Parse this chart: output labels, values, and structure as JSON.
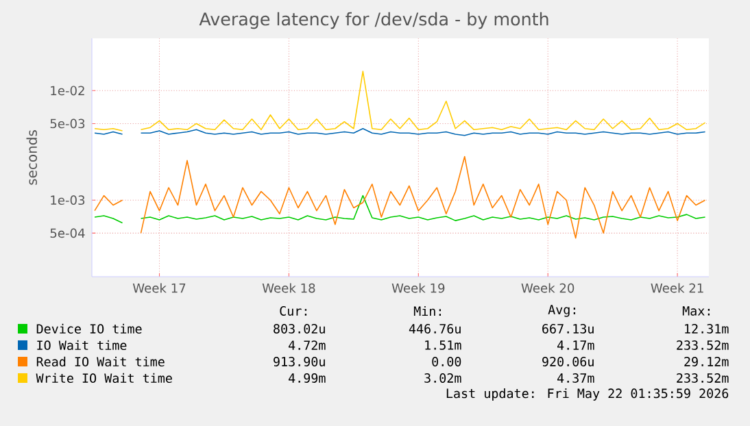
{
  "chart_data": {
    "type": "line",
    "title": "Average latency for /dev/sda - by month",
    "ylabel": "seconds",
    "log": "y",
    "grid": true,
    "legend": "bottom",
    "marker": "none",
    "line_style": "solid",
    "categories": [
      null,
      null,
      null,
      null,
      null,
      null,
      null,
      "Week 17",
      null,
      null,
      null,
      null,
      null,
      null,
      null,
      null,
      null,
      null,
      null,
      null,
      null,
      "Week 18",
      null,
      null,
      null,
      null,
      null,
      null,
      null,
      null,
      null,
      null,
      null,
      null,
      null,
      "Week 19",
      null,
      null,
      null,
      null,
      null,
      null,
      null,
      null,
      null,
      null,
      null,
      null,
      null,
      "Week 20",
      null,
      null,
      null,
      null,
      null,
      null,
      null,
      null,
      null,
      null,
      null,
      null,
      null,
      "Week 21",
      null,
      null,
      null
    ],
    "ylim": [
      0.0002,
      0.03
    ],
    "yticks": [
      {
        "value": 0.0005,
        "label": "5e-04"
      },
      {
        "value": 0.001,
        "label": "1e-03"
      },
      {
        "value": 0.005,
        "label": "5e-03"
      },
      {
        "value": 0.01,
        "label": "1e-02"
      }
    ],
    "series": [
      {
        "name": "Device IO time",
        "color": "#00cc00",
        "values": [
          0.0007,
          0.00072,
          0.00068,
          0.00062,
          null,
          0.00068,
          0.0007,
          0.00066,
          0.00072,
          0.00068,
          0.0007,
          0.00067,
          0.00069,
          0.00072,
          0.00066,
          0.0007,
          0.00068,
          0.00071,
          0.00066,
          0.00069,
          0.00068,
          0.0007,
          0.00066,
          0.00072,
          0.00068,
          0.00066,
          0.0007,
          0.00068,
          0.00067,
          0.0011,
          0.00069,
          0.00066,
          0.0007,
          0.00072,
          0.00068,
          0.0007,
          0.00066,
          0.00069,
          0.00071,
          0.00065,
          0.00068,
          0.00072,
          0.00066,
          0.0007,
          0.00068,
          0.00071,
          0.00067,
          0.00069,
          0.00066,
          0.0007,
          0.00068,
          0.00072,
          0.00067,
          0.00069,
          0.00066,
          0.0007,
          0.00071,
          0.00068,
          0.00066,
          0.0007,
          0.00068,
          0.00072,
          0.00069,
          0.0007,
          0.00074,
          0.00068,
          0.0007
        ]
      },
      {
        "name": "IO Wait time",
        "color": "#0066b3",
        "values": [
          0.0041,
          0.004,
          0.0042,
          0.004,
          null,
          0.0041,
          0.0041,
          0.0043,
          0.004,
          0.0041,
          0.0042,
          0.0044,
          0.0041,
          0.004,
          0.0041,
          0.004,
          0.0041,
          0.0042,
          0.004,
          0.0041,
          0.0041,
          0.0042,
          0.004,
          0.0041,
          0.0041,
          0.004,
          0.0041,
          0.0042,
          0.0041,
          0.0045,
          0.0041,
          0.004,
          0.0042,
          0.0041,
          0.0041,
          0.004,
          0.0041,
          0.0041,
          0.0042,
          0.004,
          0.0039,
          0.0041,
          0.004,
          0.0041,
          0.0041,
          0.0042,
          0.004,
          0.0041,
          0.0041,
          0.004,
          0.0042,
          0.0041,
          0.0041,
          0.004,
          0.0041,
          0.0042,
          0.0041,
          0.004,
          0.0041,
          0.0041,
          0.004,
          0.0041,
          0.0042,
          0.004,
          0.0041,
          0.0041,
          0.0042
        ]
      },
      {
        "name": "Read IO Wait time",
        "color": "#ff8000",
        "values": [
          0.0008,
          0.0011,
          0.0009,
          0.001,
          null,
          0.0005,
          0.0012,
          0.0008,
          0.0013,
          0.0009,
          0.0023,
          0.0009,
          0.0014,
          0.0008,
          0.0011,
          0.0007,
          0.0013,
          0.0009,
          0.0012,
          0.001,
          0.00075,
          0.0013,
          0.00085,
          0.0012,
          0.0008,
          0.0011,
          0.0006,
          0.00125,
          0.00085,
          0.00095,
          0.0014,
          0.0007,
          0.0012,
          0.0009,
          0.00135,
          0.0008,
          0.001,
          0.0013,
          0.00075,
          0.0012,
          0.0025,
          0.0009,
          0.0014,
          0.00085,
          0.0011,
          0.0007,
          0.00125,
          0.0009,
          0.0014,
          0.0006,
          0.0012,
          0.001,
          0.00045,
          0.0013,
          0.0009,
          0.0005,
          0.0012,
          0.0008,
          0.0011,
          0.0007,
          0.0013,
          0.0008,
          0.0012,
          0.00065,
          0.0011,
          0.0009,
          0.001
        ]
      },
      {
        "name": "Write IO Wait time",
        "color": "#ffcc00",
        "values": [
          0.0045,
          0.0044,
          0.0045,
          0.0043,
          null,
          0.0044,
          0.0046,
          0.0053,
          0.0044,
          0.0045,
          0.0044,
          0.005,
          0.0045,
          0.0044,
          0.0054,
          0.0045,
          0.0044,
          0.0055,
          0.0044,
          0.006,
          0.0045,
          0.0055,
          0.0044,
          0.0045,
          0.0055,
          0.0044,
          0.0045,
          0.0052,
          0.0045,
          0.015,
          0.0045,
          0.0044,
          0.0055,
          0.0045,
          0.0056,
          0.0044,
          0.0045,
          0.0052,
          0.008,
          0.0045,
          0.0053,
          0.0044,
          0.0045,
          0.0046,
          0.0044,
          0.0047,
          0.0045,
          0.0055,
          0.0044,
          0.0045,
          0.0046,
          0.0044,
          0.0053,
          0.0045,
          0.0044,
          0.0055,
          0.0045,
          0.0053,
          0.0044,
          0.0045,
          0.0056,
          0.0044,
          0.0045,
          0.005,
          0.0044,
          0.0045,
          0.0051
        ]
      }
    ],
    "annotations": [
      "Cur:",
      "Min:",
      "Avg:",
      "Max:",
      "803.02u",
      "446.76u",
      "667.13u",
      "12.31m",
      "4.72m",
      "1.51m",
      "4.17m",
      "233.52m",
      "913.90u",
      "0.00",
      "920.06u",
      "29.12m",
      "4.99m",
      "3.02m",
      "4.37m",
      "233.52m",
      "Last update: Fri May 22 01:35:59 2026"
    ]
  }
}
